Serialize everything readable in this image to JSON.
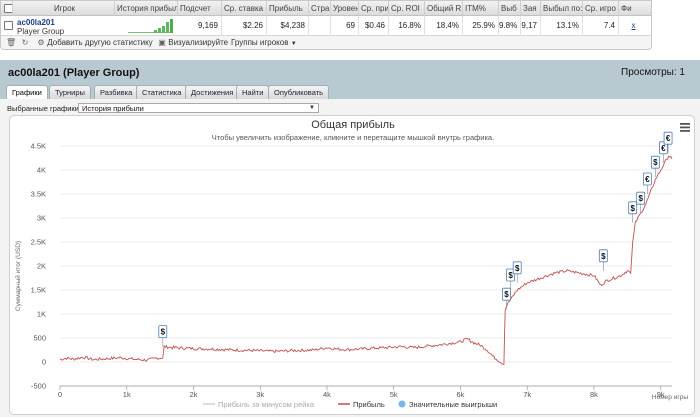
{
  "table": {
    "headers": [
      "Игрок",
      "История прибыл",
      "Подсчет",
      "Ср. ставка",
      "Прибыль",
      "Стра",
      "Уровен",
      "Ср. при",
      "Ср. ROI",
      "Общий R",
      "ITM%",
      "Выб",
      "Зая",
      "Выбыл по:",
      "Ср. игро",
      "Фи"
    ],
    "row": {
      "player_name": "ac00la201",
      "player_group": "Player Group",
      "values": [
        "9,169",
        "$2.26",
        "$4,238",
        "",
        "69",
        "$0.46",
        "16.8%",
        "18.4%",
        "25.9%",
        "9.8%",
        "9,17",
        "13.1%",
        "7.4",
        "x"
      ]
    }
  },
  "toolbar": {
    "add_stat": "Добавить другую статистику",
    "visualize": "Визуализируйте",
    "player_groups": "Группы игроков"
  },
  "panel": {
    "title": "ac00la201 (Player Group)",
    "views": "Просмотры: 1",
    "tabs": [
      "Графики",
      "Турниры",
      "Разбивка",
      "Статистика",
      "Достижения",
      "Найти",
      "Опубликовать"
    ],
    "active_tab": 0,
    "selected_label": "Выбранные графики:",
    "selected_value": "История прибыли"
  },
  "chart_data": {
    "type": "line",
    "title": "Общая прибыль",
    "subtitle": "Чтобы увеличить изображение, кликните и перетащите мышкой внутрь графика.",
    "xlabel": "Номер игры",
    "ylabel": "Суммарный итог (USD)",
    "xlim": [
      0,
      9169
    ],
    "ylim": [
      -500,
      4500
    ],
    "x_ticks": [
      "0",
      "1k",
      "2k",
      "3k",
      "4k",
      "5k",
      "6k",
      "7k",
      "8k",
      "9k"
    ],
    "y_ticks": [
      "-500",
      "0",
      "500",
      "1K",
      "1.5K",
      "2K",
      "2.5K",
      "3K",
      "3.5K",
      "4K",
      "4.5K"
    ],
    "legend": [
      "Прибыль за минусом рейка",
      "Прибыль",
      "Значительные выигрыши"
    ],
    "series": [
      {
        "name": "Прибыль",
        "color": "#c0504d",
        "points": [
          [
            0,
            50
          ],
          [
            100,
            80
          ],
          [
            200,
            60
          ],
          [
            350,
            100
          ],
          [
            500,
            50
          ],
          [
            700,
            70
          ],
          [
            900,
            90
          ],
          [
            1100,
            60
          ],
          [
            1300,
            40
          ],
          [
            1450,
            80
          ],
          [
            1540,
            90
          ],
          [
            1560,
            320
          ],
          [
            1700,
            300
          ],
          [
            2000,
            280
          ],
          [
            2300,
            270
          ],
          [
            2600,
            250
          ],
          [
            2900,
            240
          ],
          [
            3200,
            220
          ],
          [
            3500,
            240
          ],
          [
            3800,
            250
          ],
          [
            4000,
            300
          ],
          [
            4150,
            270
          ],
          [
            4300,
            260
          ],
          [
            4500,
            270
          ],
          [
            4700,
            290
          ],
          [
            4900,
            300
          ],
          [
            5100,
            320
          ],
          [
            5300,
            300
          ],
          [
            5500,
            330
          ],
          [
            5700,
            360
          ],
          [
            5900,
            400
          ],
          [
            6000,
            420
          ],
          [
            6100,
            480
          ],
          [
            6200,
            400
          ],
          [
            6300,
            350
          ],
          [
            6400,
            250
          ],
          [
            6500,
            100
          ],
          [
            6600,
            0
          ],
          [
            6650,
            -50
          ],
          [
            6670,
            1100
          ],
          [
            6700,
            1200
          ],
          [
            6750,
            1300
          ],
          [
            6850,
            1500
          ],
          [
            7000,
            1650
          ],
          [
            7200,
            1750
          ],
          [
            7400,
            1850
          ],
          [
            7600,
            1900
          ],
          [
            7800,
            1850
          ],
          [
            8000,
            1800
          ],
          [
            8100,
            1600
          ],
          [
            8200,
            1700
          ],
          [
            8400,
            1800
          ],
          [
            8500,
            1900
          ],
          [
            8550,
            1850
          ],
          [
            8580,
            2500
          ],
          [
            8620,
            2900
          ],
          [
            8700,
            3100
          ],
          [
            8780,
            3300
          ],
          [
            8850,
            3550
          ],
          [
            8920,
            3800
          ],
          [
            9000,
            4000
          ],
          [
            9060,
            4150
          ],
          [
            9120,
            4300
          ],
          [
            9169,
            4238
          ]
        ]
      }
    ],
    "big_wins": [
      {
        "x": 1540,
        "y": 320,
        "symbol": "$"
      },
      {
        "x": 6690,
        "y": 1100,
        "symbol": "$"
      },
      {
        "x": 6750,
        "y": 1500,
        "symbol": "$"
      },
      {
        "x": 6850,
        "y": 1650,
        "symbol": "$"
      },
      {
        "x": 8140,
        "y": 1900,
        "symbol": "$"
      },
      {
        "x": 8580,
        "y": 2900,
        "symbol": "$"
      },
      {
        "x": 8700,
        "y": 3100,
        "symbol": "$"
      },
      {
        "x": 8800,
        "y": 3500,
        "symbol": "€"
      },
      {
        "x": 8920,
        "y": 3850,
        "symbol": "$"
      },
      {
        "x": 9040,
        "y": 4150,
        "symbol": "€"
      },
      {
        "x": 9110,
        "y": 4350,
        "symbol": "€"
      }
    ]
  }
}
